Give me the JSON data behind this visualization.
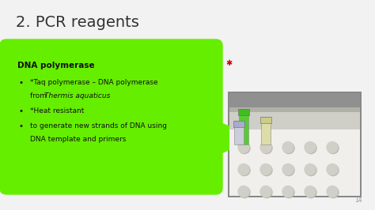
{
  "background_color": "#f2f2f2",
  "title": "2. PCR reagents",
  "title_fontsize": 14,
  "title_color": "#333333",
  "box_color": "#66ee00",
  "heading": "DNA polymerase",
  "heading_fontsize": 7.5,
  "bullet_fontsize": 6.5,
  "bullet1a": "*Taq polymerase – DNA polymerase",
  "bullet1b": "from ",
  "bullet1b_italic": "Thermis aquaticus",
  "bullet2": "*Heat resistant",
  "bullet3a": "to generate new strands of DNA using",
  "bullet3b": "DNA template and primers",
  "text_color": "#111111",
  "page_number": "14",
  "photo_bg": "#e8e8e8",
  "photo_rack_color": "#f0f0f0",
  "photo_shadow": "#c8c8c8"
}
